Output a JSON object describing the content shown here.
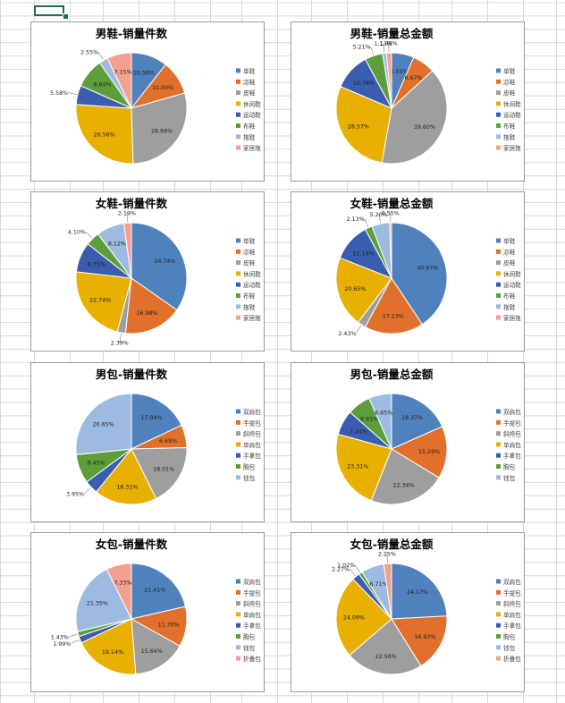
{
  "colors": {
    "c1": "#4f81bd",
    "c2": "#e0702b",
    "c3": "#9e9e9e",
    "c4": "#e8b000",
    "c5": "#3a5db0",
    "c6": "#5e9e3a",
    "c7": "#9dbbe0",
    "c8": "#f4a090"
  },
  "chart_data": [
    {
      "id": "chart-1",
      "type": "pie",
      "title": "男鞋-销量件数",
      "categories": [
        "单鞋",
        "凉鞋",
        "皮鞋",
        "休闲鞋",
        "运动鞋",
        "布鞋",
        "拖鞋",
        "家居拖"
      ],
      "values": [
        10.58,
        10.0,
        28.94,
        26.56,
        5.58,
        8.64,
        2.55,
        7.15
      ],
      "labels": [
        "10.58%",
        "10.00%",
        "28.94%",
        "26.56%",
        "5.58%",
        "8.64%",
        "2.55%",
        "7.15%"
      ],
      "legend": "right"
    },
    {
      "id": "chart-2",
      "type": "pie",
      "title": "男鞋-销量总金额",
      "categories": [
        "单鞋",
        "凉鞋",
        "皮鞋",
        "休闲鞋",
        "运动鞋",
        "布鞋",
        "拖鞋",
        "家居拖"
      ],
      "values": [
        6.55,
        6.67,
        39.6,
        28.57,
        10.78,
        5.21,
        1.13,
        1.49
      ],
      "labels": [
        "6.55%",
        "6.67%",
        "39.60%",
        "28.57%",
        "10.78%",
        "5.21%",
        "1.13%",
        "1.49%"
      ],
      "legend": "right"
    },
    {
      "id": "chart-3",
      "type": "pie",
      "title": "女鞋-销量件数",
      "categories": [
        "单鞋",
        "凉鞋",
        "皮鞋",
        "休闲鞋",
        "运动鞋",
        "布鞋",
        "拖鞋",
        "家居拖"
      ],
      "values": [
        34.74,
        16.98,
        2.39,
        22.74,
        8.75,
        4.1,
        8.12,
        2.19
      ],
      "labels": [
        "34.74%",
        "16.98%",
        "2.39%",
        "22.74%",
        "8.75%",
        "4.10%",
        "8.12%",
        "2.19%"
      ],
      "legend": "right"
    },
    {
      "id": "chart-4",
      "type": "pie",
      "title": "女鞋-销量总金额",
      "categories": [
        "单鞋",
        "凉鞋",
        "皮鞋",
        "休闲鞋",
        "运动鞋",
        "布鞋",
        "拖鞋",
        "家居拖"
      ],
      "values": [
        40.67,
        17.23,
        2.43,
        20.65,
        11.14,
        2.13,
        5.2,
        0.55
      ],
      "labels": [
        "40.67%",
        "17.23%",
        "2.43%",
        "20.65%",
        "11.14%",
        "2.13%",
        "5.20%",
        "0.55%"
      ],
      "legend": "right"
    },
    {
      "id": "chart-5",
      "type": "pie",
      "title": "男包-销量件数",
      "categories": [
        "双肩包",
        "手提包",
        "斜挎包",
        "单肩包",
        "手拿包",
        "胸包",
        "钱包"
      ],
      "values": [
        17.94,
        6.69,
        18.01,
        18.31,
        3.95,
        8.45,
        26.65
      ],
      "labels": [
        "17.94%",
        "6.69%",
        "18.01%",
        "18.31%",
        "3.95%",
        "8.45%",
        "26.65%"
      ],
      "legend": "right"
    },
    {
      "id": "chart-6",
      "type": "pie",
      "title": "男包-销量总金额",
      "categories": [
        "双肩包",
        "手提包",
        "斜挎包",
        "单肩包",
        "手拿包",
        "胸包",
        "钱包"
      ],
      "values": [
        18.37,
        15.29,
        22.34,
        23.31,
        7.24,
        6.81,
        6.65
      ],
      "labels": [
        "18.37%",
        "15.29%",
        "22.34%",
        "23.31%",
        "7.24%",
        "6.81%",
        "6.65%"
      ],
      "legend": "right"
    },
    {
      "id": "chart-7",
      "type": "pie",
      "title": "女包-销量件数",
      "categories": [
        "双肩包",
        "手提包",
        "斜挎包",
        "单肩包",
        "手拿包",
        "胸包",
        "钱包",
        "折叠包"
      ],
      "values": [
        21.41,
        11.7,
        15.64,
        19.14,
        1.99,
        1.43,
        21.35,
        7.33
      ],
      "labels": [
        "21.41%",
        "11.70%",
        "15.64%",
        "19.14%",
        "1.99%",
        "1.43%",
        "21.35%",
        "7.33%"
      ],
      "legend": "right"
    },
    {
      "id": "chart-8",
      "type": "pie",
      "title": "女包-销量总金额",
      "categories": [
        "双肩包",
        "手提包",
        "斜挎包",
        "单肩包",
        "手拿包",
        "胸包",
        "钱包",
        "折叠包"
      ],
      "values": [
        24.17,
        16.93,
        22.56,
        24.09,
        2.27,
        1.02,
        6.71,
        2.25
      ],
      "labels": [
        "24.17%",
        "16.93%",
        "22.56%",
        "24.09%",
        "2.27%",
        "1.02%",
        "6.71%",
        "2.25%"
      ],
      "legend": "right"
    }
  ]
}
